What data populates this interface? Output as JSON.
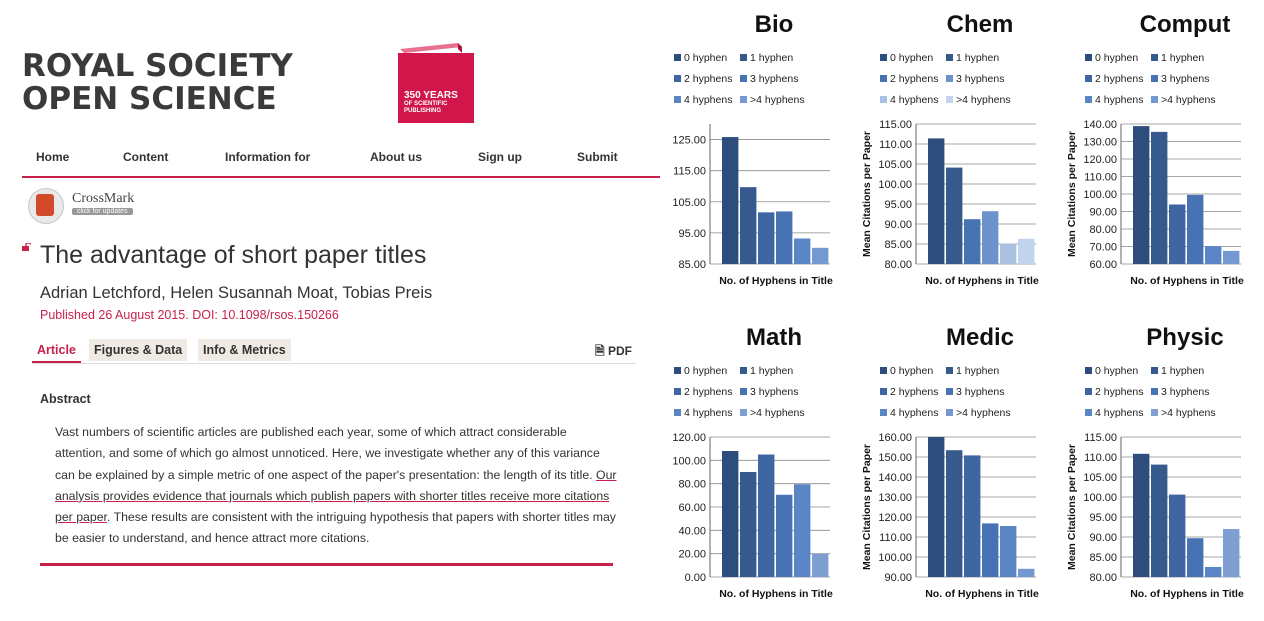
{
  "brand": {
    "line1": "ROYAL SOCIETY",
    "line2": "OPEN SCIENCE"
  },
  "book": {
    "line1": "350 YEARS",
    "line2": "OF SCIENTIFIC",
    "line3": "PUBLISHING",
    "color": "#d0164a"
  },
  "nav": {
    "items": [
      "Home",
      "Content",
      "Information for",
      "About us",
      "Sign up",
      "Submit"
    ]
  },
  "crossmark": {
    "label": "CrossMark",
    "sub": "click for updates"
  },
  "article": {
    "title": "The advantage of short paper titles",
    "authors": "Adrian Letchford, Helen Susannah Moat, Tobias Preis",
    "published": "Published 26 August 2015. DOI: 10.1098/rsos.150266"
  },
  "tabs": {
    "items": [
      "Article",
      "Figures & Data",
      "Info & Metrics"
    ],
    "pdf": "PDF"
  },
  "abstract": {
    "heading": "Abstract",
    "pre": "Vast numbers of scientific articles are published each year, some of which attract considerable attention, and some of which go almost unnoticed. Here, we investigate whether any of this variance can be explained by a simple metric of one aspect of the paper's presentation: the length of its title. ",
    "highlight": "Our analysis provides evidence that journals which publish papers with shorter titles receive more citations per paper",
    "post": ". These results are consistent with the intriguing hypothesis that papers with shorter titles may be easier to understand, and hence attract more citations."
  },
  "colors": {
    "accent": "#c8224a",
    "bars": [
      "#2e4f7e",
      "#3a5e96",
      "#4470ae",
      "#4c7cbc",
      "#6c93cc",
      "#8fb0dc"
    ]
  },
  "chart_data": [
    {
      "type": "bar",
      "title": "Bio",
      "categories": [
        "0 hyphen",
        "1 hyphen",
        "2 hyphens",
        "3 hyphens",
        "4 hyphens",
        ">4 hyphens"
      ],
      "values": [
        125.8,
        109.7,
        101.6,
        101.9,
        93.2,
        90.2
      ],
      "xlabel": "No. of Hyphens in Title",
      "ylabel": "",
      "ylim": [
        85,
        130
      ],
      "ticks": [
        "85.00",
        "95.00",
        "105.00",
        "115.00",
        "125.00"
      ],
      "barColors": [
        "#2d4e7d",
        "#36598e",
        "#3f66a3",
        "#4773b5",
        "#5a86c6",
        "#7499d1"
      ],
      "legend": "top"
    },
    {
      "type": "bar",
      "title": "Chem",
      "categories": [
        "0 hyphen",
        "1 hyphen",
        "2 hyphens",
        "3 hyphens",
        "4 hyphens",
        ">4 hyphens"
      ],
      "values": [
        111.4,
        104.1,
        91.2,
        93.2,
        85.1,
        86.3
      ],
      "xlabel": "No. of Hyphens in Title",
      "ylabel": "Mean Citations per Paper",
      "ylim": [
        80,
        115
      ],
      "ticks": [
        "80.00",
        "85.00",
        "90.00",
        "95.00",
        "100.00",
        "105.00",
        "110.00",
        "115.00"
      ],
      "barColors": [
        "#2d4e7d",
        "#36598e",
        "#4773b5",
        "#6c93cc",
        "#a9c0e2",
        "#c2d3ec"
      ],
      "legend": "top"
    },
    {
      "type": "bar",
      "title": "Comput",
      "categories": [
        "0 hyphen",
        "1 hyphen",
        "2 hyphens",
        "3 hyphens",
        "4 hyphens",
        ">4 hyphens"
      ],
      "values": [
        138.8,
        135.5,
        94.0,
        99.5,
        70.2,
        67.5
      ],
      "xlabel": "No. of Hyphens in Title",
      "ylabel": "Mean Citations per Paper",
      "ylim": [
        60,
        140
      ],
      "ticks": [
        "60.00",
        "70.00",
        "80.00",
        "90.00",
        "100.00",
        "110.00",
        "120.00",
        "130.00",
        "140.00"
      ],
      "barColors": [
        "#2d4e7d",
        "#36598e",
        "#3f66a3",
        "#4773b5",
        "#5a86c6",
        "#7499d1"
      ],
      "legend": "top"
    },
    {
      "type": "bar",
      "title": "Math",
      "categories": [
        "0 hyphen",
        "1 hyphen",
        "2 hyphens",
        "3 hyphens",
        "4 hyphens",
        ">4 hyphens"
      ],
      "values": [
        108.0,
        90.0,
        105.0,
        70.5,
        79.5,
        20.0
      ],
      "xlabel": "No. of Hyphens in Title",
      "ylabel": "",
      "ylim": [
        0,
        120
      ],
      "ticks": [
        "0.00",
        "20.00",
        "40.00",
        "60.00",
        "80.00",
        "100.00",
        "120.00"
      ],
      "barColors": [
        "#2d4e7d",
        "#36598e",
        "#3f66a3",
        "#4773b5",
        "#5a86c6",
        "#7f9fd3"
      ],
      "legend": "top"
    },
    {
      "type": "bar",
      "title": "Medic",
      "categories": [
        "0 hyphen",
        "1 hyphen",
        "2 hyphens",
        "3 hyphens",
        "4 hyphens",
        ">4 hyphens"
      ],
      "values": [
        161.8,
        153.4,
        150.8,
        116.8,
        115.5,
        94.1
      ],
      "xlabel": "No. of Hyphens in Title",
      "ylabel": "Mean Citations per Paper",
      "ylim": [
        90,
        160
      ],
      "ticks": [
        "90.00",
        "100.00",
        "110.00",
        "120.00",
        "130.00",
        "140.00",
        "150.00",
        "160.00"
      ],
      "barColors": [
        "#2d4e7d",
        "#36598e",
        "#3f66a3",
        "#4773b5",
        "#5a86c6",
        "#7499d1"
      ],
      "legend": "top"
    },
    {
      "type": "bar",
      "title": "Physic",
      "categories": [
        "0 hyphen",
        "1 hyphen",
        "2 hyphens",
        "3 hyphens",
        "4 hyphens",
        ">4 hyphens"
      ],
      "values": [
        110.8,
        108.1,
        100.6,
        89.7,
        82.5,
        92.0
      ],
      "xlabel": "No. of Hyphens in Title",
      "ylabel": "Mean Citations per Paper",
      "ylim": [
        80,
        115
      ],
      "ticks": [
        "80.00",
        "85.00",
        "90.00",
        "95.00",
        "100.00",
        "105.00",
        "110.00",
        "115.00"
      ],
      "barColors": [
        "#2d4e7d",
        "#36598e",
        "#3f66a3",
        "#4773b5",
        "#5a86c6",
        "#7f9fd3"
      ],
      "legend": "top"
    }
  ]
}
